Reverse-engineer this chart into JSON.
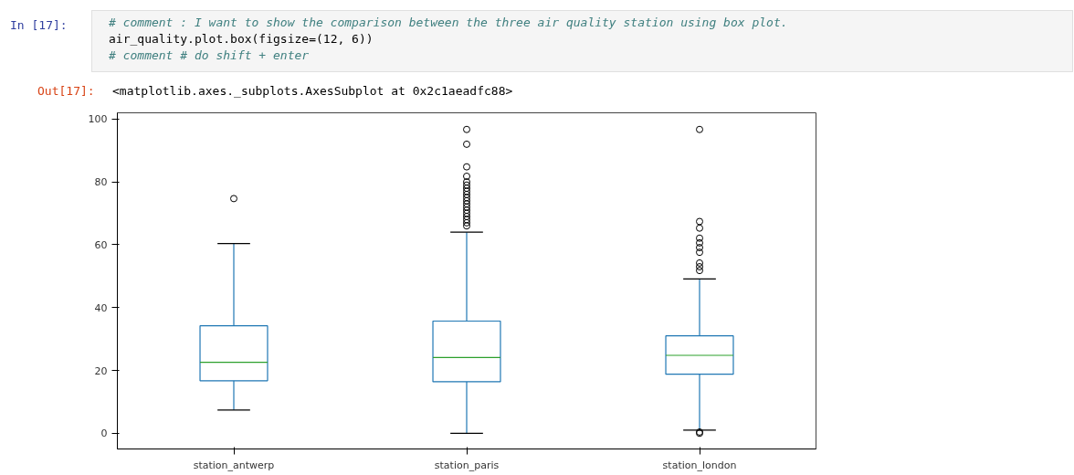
{
  "chart_data": {
    "type": "box",
    "annotations": [
      "In [17]:",
      "# comment : I want to show the comparison between the three air quality station using box plot.",
      "air_quality.plot.box(figsize=(12, 6))",
      "# comment # do shift + enter",
      "Out[17]:",
      "<matplotlib.axes._subplots.AxesSubplot at 0x2c1aeadfc88>"
    ],
    "categories": [
      "station_antwerp",
      "station_paris",
      "station_london"
    ],
    "series": [
      {
        "color": "#1f77b4",
        "boxes": [
          {
            "low": 7.4,
            "q1": 16.7,
            "median": 22.6,
            "q3": 34.2,
            "high": 60.4,
            "outliers": [
              74.7
            ]
          },
          {
            "low": 0,
            "q1": 16.4,
            "median": 24.1,
            "q3": 35.7,
            "high": 64.0,
            "outliers": [
              96.7,
              92.0,
              84.8,
              81.8,
              80,
              79,
              78,
              77,
              76,
              75,
              74,
              73,
              72,
              71,
              70,
              69,
              68,
              67,
              66
            ]
          },
          {
            "low": 1.0,
            "q1": 18.8,
            "median": 24.8,
            "q3": 31.0,
            "high": 49.1,
            "outliers": [
              96.7,
              67.4,
              65.3,
              62.1,
              60.6,
              59.1,
              57.6,
              54.2,
              53.0,
              51.8,
              0,
              0.4
            ]
          }
        ]
      }
    ],
    "ylim": [
      -5,
      102
    ],
    "yticks": [
      0,
      20,
      40,
      60,
      80,
      100
    ],
    "grid": false
  }
}
